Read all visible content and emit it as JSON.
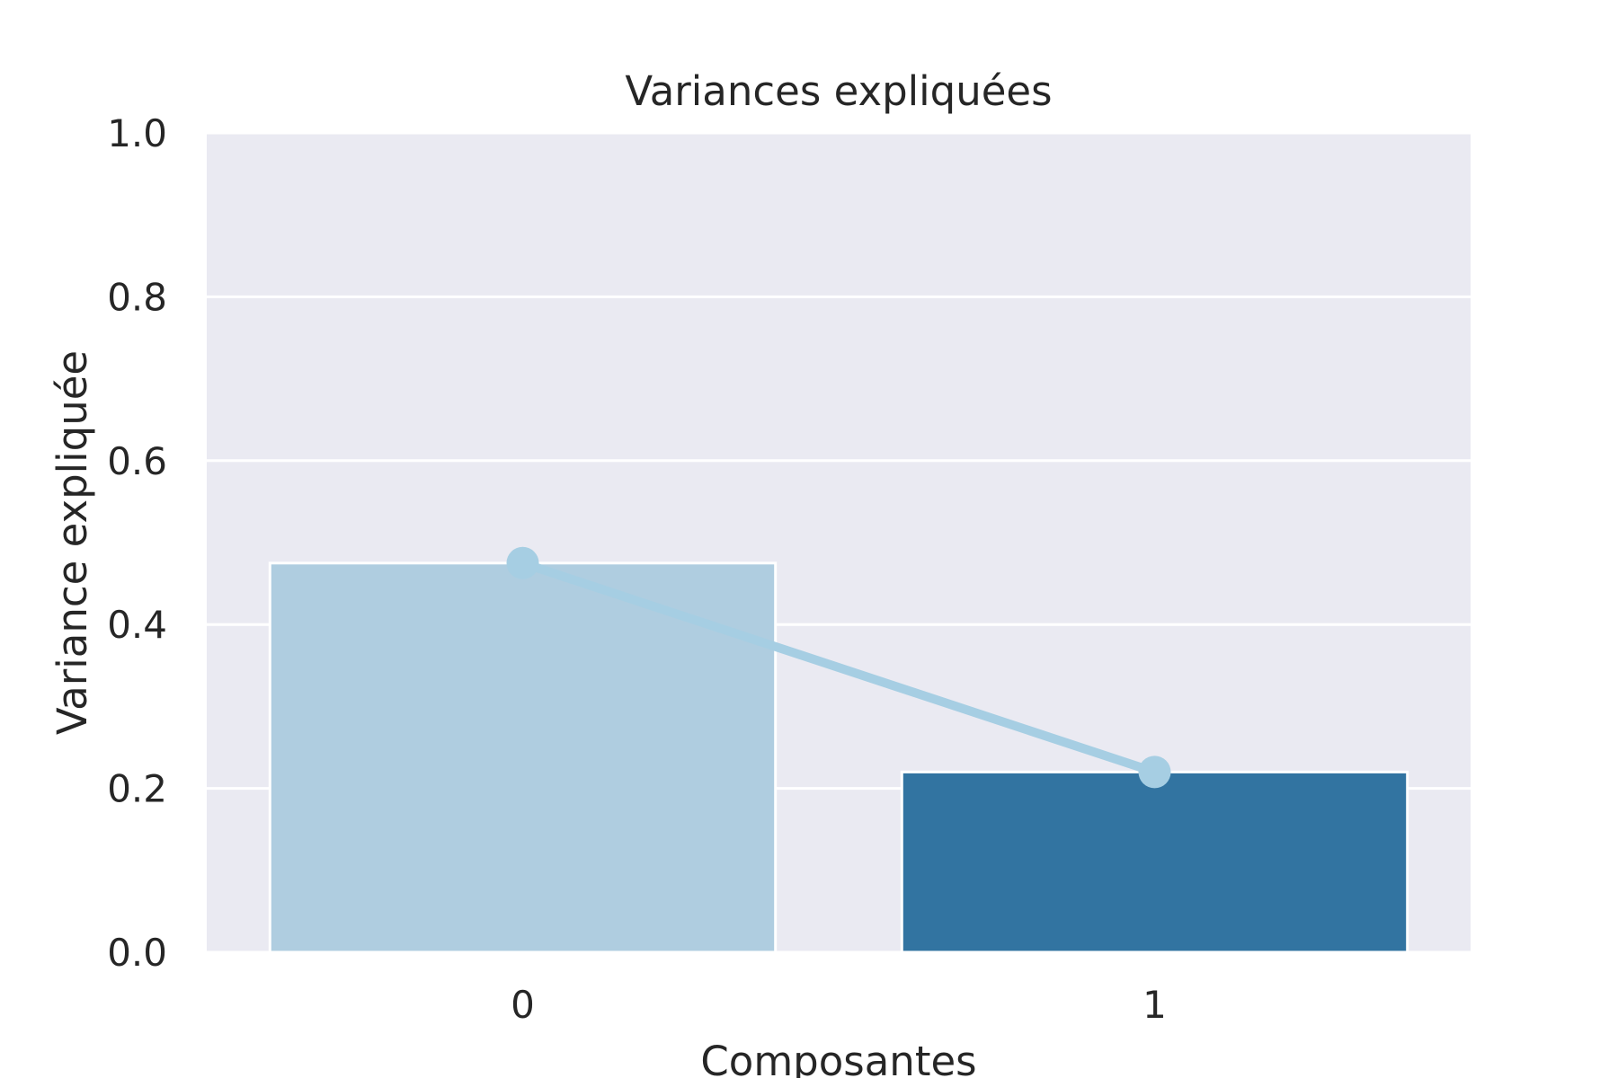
{
  "chart_data": {
    "type": "bar",
    "title": "Variances expliquées",
    "xlabel": "Composantes",
    "ylabel": "Variance expliquée",
    "categories": [
      "0",
      "1"
    ],
    "values": [
      0.475,
      0.22
    ],
    "bar_colors": [
      "#afcde0",
      "#3274a1"
    ],
    "line": {
      "values": [
        0.475,
        0.22
      ],
      "color": "#a6cee3"
    },
    "ylim": [
      0,
      1.0
    ],
    "yticks": [
      "0.0",
      "0.2",
      "0.4",
      "0.6",
      "0.8",
      "1.0"
    ],
    "grid": true,
    "background": "#eaeaf2"
  }
}
